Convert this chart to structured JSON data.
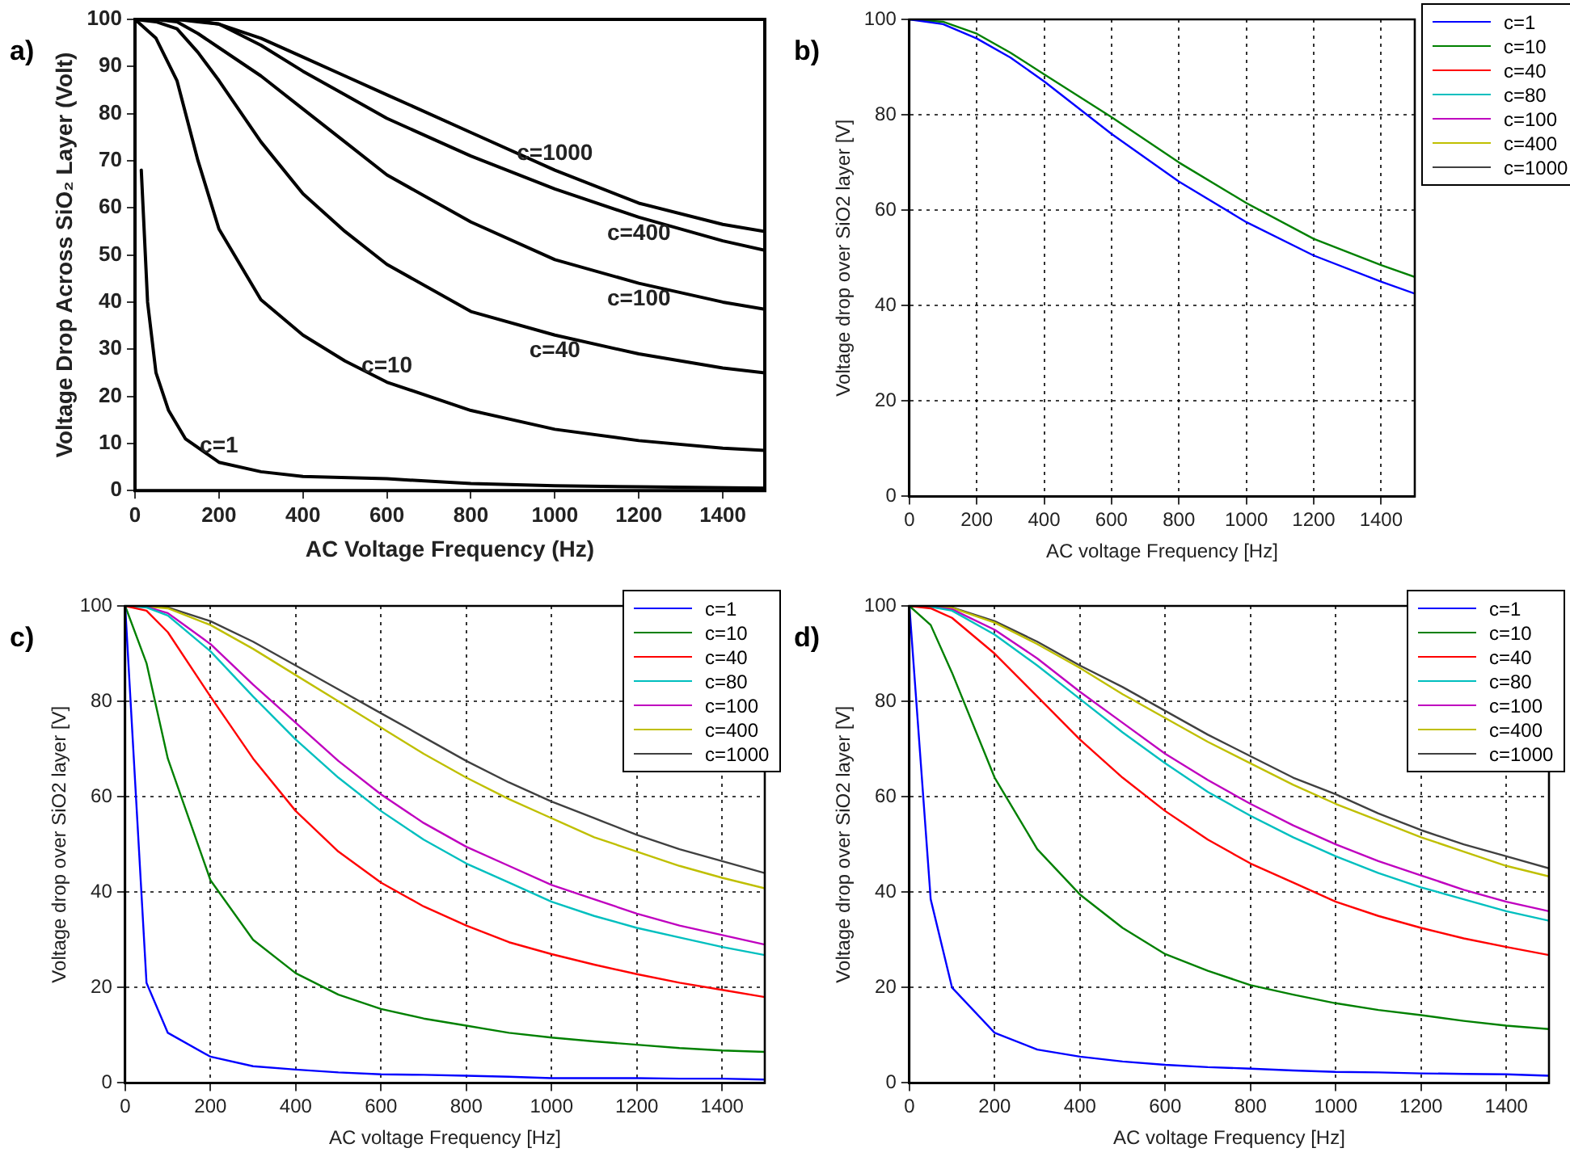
{
  "chart_data": [
    {
      "type": "line",
      "title": "a)",
      "xlabel": "AC Voltage Frequency (Hz)",
      "ylabel": "Voltage Drop Across SiO₂ Layer (Volt)",
      "x": [
        0,
        50,
        100,
        150,
        200,
        300,
        400,
        500,
        600,
        800,
        1000,
        1200,
        1400,
        1500
      ],
      "xlim": [
        0,
        1500
      ],
      "ylim": [
        0,
        100
      ],
      "xticks": [
        0,
        200,
        400,
        600,
        800,
        1000,
        1200,
        1400
      ],
      "yticks": [
        0,
        10,
        20,
        30,
        40,
        50,
        60,
        70,
        80,
        90,
        100
      ],
      "grid": false,
      "legend": false,
      "marker": "none",
      "line_style": "solid",
      "series": [
        {
          "color": "#000000",
          "x": [
            15,
            30,
            50,
            80,
            120,
            200,
            300,
            400,
            600,
            800,
            1000,
            1200,
            1500
          ],
          "values": [
            68,
            40,
            25,
            17,
            11,
            6,
            4,
            3,
            2.5,
            1.5,
            1,
            0.8,
            0.5
          ]
        },
        {
          "color": "#000000",
          "values": [
            100,
            96,
            87,
            70,
            55.5,
            40.5,
            33,
            27.5,
            23,
            17,
            13,
            10.6,
            9,
            8.5
          ]
        },
        {
          "color": "#000000",
          "values": [
            100,
            99.5,
            98,
            93,
            87,
            74,
            63,
            55,
            48,
            38,
            33,
            29,
            26,
            25
          ]
        },
        {
          "color": "#000000",
          "values": [
            100,
            100,
            99.5,
            97,
            94,
            88,
            81,
            74,
            67,
            57,
            49,
            44,
            40,
            38.5
          ]
        },
        {
          "color": "#000000",
          "values": [
            100,
            100,
            100,
            99.5,
            99,
            94.5,
            89,
            84,
            79,
            71,
            64,
            58,
            53,
            51
          ]
        },
        {
          "color": "#000000",
          "values": [
            100,
            100,
            100,
            99.7,
            99,
            96,
            92,
            88,
            84,
            76,
            68,
            61,
            56.5,
            55
          ]
        }
      ],
      "annotations": [
        {
          "text": "c=1000",
          "x": 1000,
          "y": 68
        },
        {
          "text": "c=400",
          "x": 1200,
          "y": 58
        },
        {
          "text": "c=100",
          "x": 1200,
          "y": 44
        },
        {
          "text": "c=40",
          "x": 1000,
          "y": 33
        },
        {
          "text": "c=10",
          "x": 600,
          "y": 23
        },
        {
          "text": "c=1",
          "x": 200,
          "y": 6
        }
      ]
    },
    {
      "type": "line",
      "title": "b)",
      "xlabel": "AC voltage Frequency [Hz]",
      "ylabel": "Voltage drop over SiO2 layer [V]",
      "x": [
        0,
        100,
        200,
        300,
        400,
        500,
        600,
        800,
        1000,
        1200,
        1400,
        1500
      ],
      "xlim": [
        0,
        1500
      ],
      "ylim": [
        0,
        100
      ],
      "xticks": [
        0,
        200,
        400,
        600,
        800,
        1000,
        1200,
        1400
      ],
      "yticks": [
        0,
        20,
        40,
        60,
        80,
        100
      ],
      "grid": true,
      "legend": "right",
      "marker": "none",
      "line_style": "solid",
      "series": [
        {
          "name": "c=1",
          "color": "#0000ff",
          "values": [
            100,
            99,
            96,
            92,
            87,
            81.5,
            76,
            66,
            57.5,
            50.5,
            45,
            42.5
          ]
        },
        {
          "name": "c=10",
          "color": "#008000",
          "values": [
            100,
            99.5,
            97,
            93,
            88.5,
            84,
            79.5,
            70,
            61.5,
            54,
            48.5,
            46
          ]
        },
        {
          "name": "c=40",
          "color": "#ff0000",
          "values": [
            null,
            null,
            null,
            null,
            null,
            null,
            null,
            null,
            null,
            null,
            null,
            null
          ]
        },
        {
          "name": "c=80",
          "color": "#00bfbf",
          "values": [
            null,
            null,
            null,
            null,
            null,
            null,
            null,
            null,
            null,
            null,
            null,
            null
          ]
        },
        {
          "name": "c=100",
          "color": "#bf00bf",
          "values": [
            null,
            null,
            null,
            null,
            null,
            null,
            null,
            null,
            null,
            null,
            null,
            null
          ]
        },
        {
          "name": "c=400",
          "color": "#bfbf00",
          "values": [
            null,
            null,
            null,
            null,
            null,
            null,
            null,
            null,
            null,
            null,
            null,
            null
          ]
        },
        {
          "name": "c=1000",
          "color": "#404040",
          "values": [
            null,
            null,
            null,
            null,
            null,
            null,
            null,
            null,
            null,
            null,
            null,
            null
          ]
        }
      ]
    },
    {
      "type": "line",
      "title": "c)",
      "xlabel": "AC voltage Frequency [Hz]",
      "ylabel": "Voltage drop over SiO2 layer [V]",
      "x": [
        0,
        50,
        100,
        200,
        300,
        400,
        500,
        600,
        700,
        800,
        900,
        1000,
        1100,
        1200,
        1300,
        1400,
        1500
      ],
      "xlim": [
        0,
        1500
      ],
      "ylim": [
        0,
        100
      ],
      "xticks": [
        0,
        200,
        400,
        600,
        800,
        1000,
        1200,
        1400
      ],
      "yticks": [
        0,
        20,
        40,
        60,
        80,
        100
      ],
      "grid": true,
      "legend": "top right",
      "marker": "none",
      "line_style": "solid",
      "series": [
        {
          "name": "c=1",
          "color": "#0000ff",
          "values": [
            100,
            21,
            10.5,
            5.5,
            3.5,
            2.8,
            2.2,
            1.8,
            1.7,
            1.5,
            1.3,
            1,
            1,
            1,
            0.9,
            0.9,
            0.7
          ]
        },
        {
          "name": "c=10",
          "color": "#008000",
          "values": [
            100,
            88,
            68,
            42.5,
            30,
            23,
            18.5,
            15.5,
            13.5,
            12,
            10.5,
            9.5,
            8.7,
            8,
            7.3,
            6.8,
            6.5
          ]
        },
        {
          "name": "c=40",
          "color": "#ff0000",
          "values": [
            100,
            99,
            94.5,
            81,
            68,
            57,
            48.5,
            42,
            37,
            33,
            29.5,
            27,
            24.8,
            22.8,
            21,
            19.5,
            18
          ]
        },
        {
          "name": "c=80",
          "color": "#00bfbf",
          "values": [
            100,
            99.7,
            98,
            90.5,
            81,
            72,
            64,
            57,
            51,
            46,
            42,
            38,
            35,
            32.5,
            30.5,
            28.5,
            26.8
          ]
        },
        {
          "name": "c=100",
          "color": "#bf00bf",
          "values": [
            100,
            99.8,
            98.5,
            92,
            83.5,
            75.5,
            67.5,
            60.5,
            54.5,
            49.5,
            45.5,
            41.5,
            38.5,
            35.5,
            33,
            31,
            29
          ]
        },
        {
          "name": "c=400",
          "color": "#bfbf00",
          "values": [
            100,
            99.9,
            99.5,
            96,
            91,
            85.5,
            80,
            74.5,
            69,
            64,
            59.5,
            55.5,
            51.5,
            48.5,
            45.5,
            43,
            40.8
          ]
        },
        {
          "name": "c=1000",
          "color": "#404040",
          "values": [
            100,
            99.9,
            99.7,
            96.8,
            92.5,
            87.5,
            82.5,
            77.5,
            72.5,
            67.5,
            63,
            59,
            55.5,
            52,
            49,
            46.5,
            44
          ]
        }
      ]
    },
    {
      "type": "line",
      "title": "d)",
      "xlabel": "AC voltage Frequency [Hz]",
      "ylabel": "Voltage drop over SiO2 layer [V]",
      "x": [
        0,
        50,
        100,
        200,
        300,
        400,
        500,
        600,
        700,
        800,
        900,
        1000,
        1100,
        1200,
        1300,
        1400,
        1500
      ],
      "xlim": [
        0,
        1500
      ],
      "ylim": [
        0,
        100
      ],
      "xticks": [
        0,
        200,
        400,
        600,
        800,
        1000,
        1200,
        1400
      ],
      "yticks": [
        0,
        20,
        40,
        60,
        80,
        100
      ],
      "grid": true,
      "legend": "top right",
      "marker": "none",
      "line_style": "solid",
      "series": [
        {
          "name": "c=1",
          "color": "#0000ff",
          "values": [
            100,
            38.5,
            20,
            10.5,
            7,
            5.5,
            4.5,
            3.8,
            3.3,
            3,
            2.6,
            2.3,
            2.2,
            2,
            1.9,
            1.8,
            1.5
          ]
        },
        {
          "name": "c=10",
          "color": "#008000",
          "values": [
            100,
            96,
            86,
            64,
            49,
            39.5,
            32.5,
            27,
            23.5,
            20.5,
            18.5,
            16.7,
            15.3,
            14.2,
            13,
            12,
            11.3
          ]
        },
        {
          "name": "c=40",
          "color": "#ff0000",
          "values": [
            100,
            99.5,
            97.5,
            90,
            81,
            72,
            64,
            57,
            51,
            46,
            42,
            38,
            35,
            32.5,
            30.3,
            28.5,
            26.8
          ]
        },
        {
          "name": "c=80",
          "color": "#00bfbf",
          "values": [
            100,
            99.8,
            99,
            94,
            87.5,
            80.5,
            73.5,
            67,
            61,
            56,
            51.5,
            47.5,
            44,
            41,
            38.5,
            36,
            34
          ]
        },
        {
          "name": "c=100",
          "color": "#bf00bf",
          "values": [
            100,
            99.8,
            99.3,
            95,
            89,
            82,
            75.5,
            69,
            63.5,
            58.5,
            54,
            50,
            46.5,
            43.5,
            40.5,
            38,
            36
          ]
        },
        {
          "name": "c=400",
          "color": "#bfbf00",
          "values": [
            100,
            99.9,
            99.6,
            96.5,
            92,
            87,
            81.5,
            76.5,
            71.5,
            67,
            62.5,
            58.5,
            55,
            51.5,
            48.5,
            45.5,
            43.3
          ]
        },
        {
          "name": "c=1000",
          "color": "#404040",
          "values": [
            100,
            99.9,
            99.7,
            96.8,
            92.5,
            87.5,
            83,
            78,
            73,
            68.5,
            64,
            60.5,
            56.5,
            53,
            50,
            47.5,
            45
          ]
        }
      ]
    }
  ]
}
